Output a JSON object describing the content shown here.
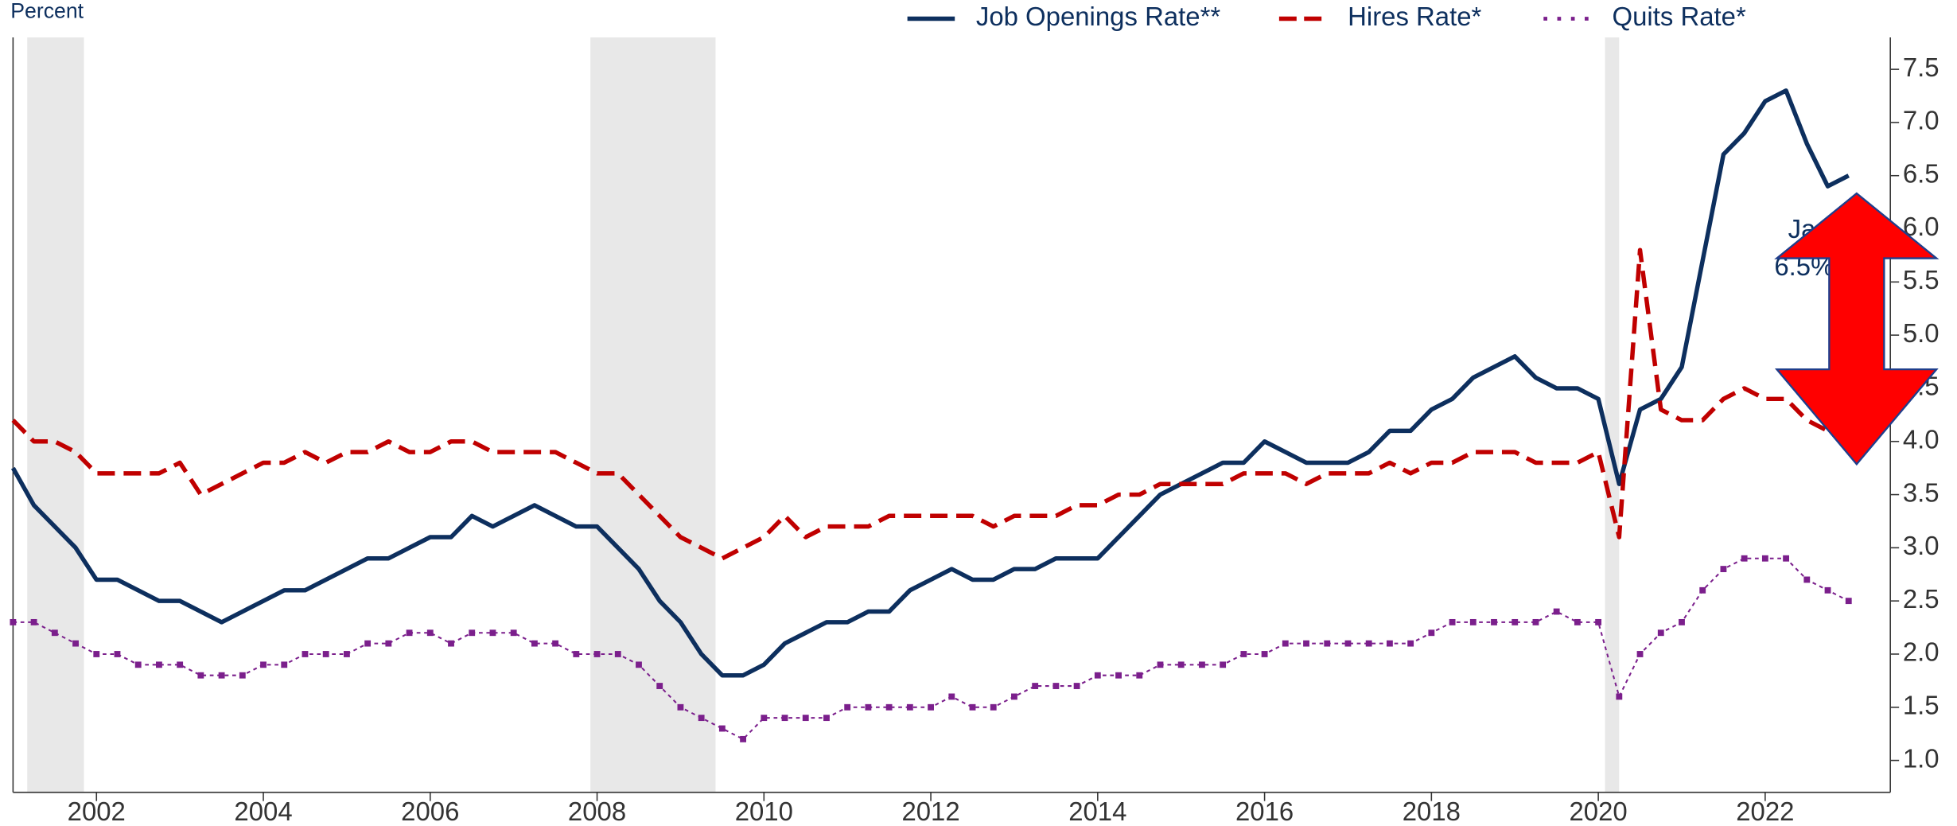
{
  "chart_data": {
    "type": "line",
    "y_axis_label": "Percent",
    "annotation": [
      "Jan",
      "6.5%"
    ],
    "xlim": [
      2001,
      2023.5
    ],
    "xticks": [
      2002,
      2004,
      2006,
      2008,
      2010,
      2012,
      2014,
      2016,
      2018,
      2020,
      2022
    ],
    "ylim": [
      0.7,
      7.8
    ],
    "yticks": [
      {
        "value": 1,
        "label": "1.0"
      },
      1.5,
      {
        "value": 2,
        "label": "2.0"
      },
      2.5,
      {
        "value": 3,
        "label": "3.0"
      },
      3.5,
      {
        "value": 4,
        "label": "4.0"
      },
      4.5,
      {
        "value": 5,
        "label": "5.0"
      },
      5.5,
      {
        "value": 6,
        "label": "6.0"
      },
      6.5,
      {
        "value": 7,
        "label": "7.0"
      },
      7.5
    ],
    "recessions": [
      [
        2001.17,
        2001.85
      ],
      [
        2007.92,
        2009.42
      ],
      [
        2020.08,
        2020.25
      ]
    ],
    "x": [
      2001,
      2001.25,
      2001.5,
      2001.75,
      2002,
      2002.25,
      2002.5,
      2002.75,
      2003,
      2003.25,
      2003.5,
      2003.75,
      2004,
      2004.25,
      2004.5,
      2004.75,
      2005,
      2005.25,
      2005.5,
      2005.75,
      2006,
      2006.25,
      2006.5,
      2006.75,
      2007,
      2007.25,
      2007.5,
      2007.75,
      2008,
      2008.25,
      2008.5,
      2008.75,
      2009,
      2009.25,
      2009.5,
      2009.75,
      2010,
      2010.25,
      2010.5,
      2010.75,
      2011,
      2011.25,
      2011.5,
      2011.75,
      2012,
      2012.25,
      2012.5,
      2012.75,
      2013,
      2013.25,
      2013.5,
      2013.75,
      2014,
      2014.25,
      2014.5,
      2014.75,
      2015,
      2015.25,
      2015.5,
      2015.75,
      2016,
      2016.25,
      2016.5,
      2016.75,
      2017,
      2017.25,
      2017.5,
      2017.75,
      2018,
      2018.25,
      2018.5,
      2018.75,
      2019,
      2019.25,
      2019.5,
      2019.75,
      2020,
      2020.25,
      2020.5,
      2020.75,
      2021,
      2021.25,
      2021.5,
      2021.75,
      2022,
      2022.25,
      2022.5,
      2022.75,
      2023
    ],
    "series": [
      {
        "name": "Job Openings Rate**",
        "color": "#0d2f5e",
        "style": "solid",
        "values": [
          3.75,
          3.4,
          3.2,
          3.0,
          2.7,
          2.7,
          2.6,
          2.5,
          2.5,
          2.4,
          2.3,
          2.4,
          2.5,
          2.6,
          2.6,
          2.7,
          2.8,
          2.9,
          2.9,
          3.0,
          3.1,
          3.1,
          3.3,
          3.2,
          3.3,
          3.4,
          3.3,
          3.2,
          3.2,
          3.0,
          2.8,
          2.5,
          2.3,
          2.0,
          1.8,
          1.8,
          1.9,
          2.1,
          2.2,
          2.3,
          2.3,
          2.4,
          2.4,
          2.6,
          2.7,
          2.8,
          2.7,
          2.7,
          2.8,
          2.8,
          2.9,
          2.9,
          2.9,
          3.1,
          3.3,
          3.5,
          3.6,
          3.7,
          3.8,
          3.8,
          4.0,
          3.9,
          3.8,
          3.8,
          3.8,
          3.9,
          4.1,
          4.1,
          4.3,
          4.4,
          4.6,
          4.7,
          4.8,
          4.6,
          4.5,
          4.5,
          4.4,
          3.6,
          4.3,
          4.4,
          4.7,
          5.7,
          6.7,
          6.9,
          7.2,
          7.3,
          6.8,
          6.4,
          6.5
        ]
      },
      {
        "name": "Hires Rate*",
        "color": "#c00000",
        "style": "dash",
        "values": [
          4.2,
          4.0,
          4.0,
          3.9,
          3.7,
          3.7,
          3.7,
          3.7,
          3.8,
          3.5,
          3.6,
          3.7,
          3.8,
          3.8,
          3.9,
          3.8,
          3.9,
          3.9,
          4.0,
          3.9,
          3.9,
          4.0,
          4.0,
          3.9,
          3.9,
          3.9,
          3.9,
          3.8,
          3.7,
          3.7,
          3.5,
          3.3,
          3.1,
          3.0,
          2.9,
          3.0,
          3.1,
          3.3,
          3.1,
          3.2,
          3.2,
          3.2,
          3.3,
          3.3,
          3.3,
          3.3,
          3.3,
          3.2,
          3.3,
          3.3,
          3.3,
          3.4,
          3.4,
          3.5,
          3.5,
          3.6,
          3.6,
          3.6,
          3.6,
          3.7,
          3.7,
          3.7,
          3.6,
          3.7,
          3.7,
          3.7,
          3.8,
          3.7,
          3.8,
          3.8,
          3.9,
          3.9,
          3.9,
          3.8,
          3.8,
          3.8,
          3.9,
          3.1,
          5.8,
          4.3,
          4.2,
          4.2,
          4.4,
          4.5,
          4.4,
          4.4,
          4.2,
          4.1,
          4.0
        ]
      },
      {
        "name": "Quits Rate*",
        "color": "#7b1f8c",
        "style": "dot",
        "values": [
          2.3,
          2.3,
          2.2,
          2.1,
          2.0,
          2.0,
          1.9,
          1.9,
          1.9,
          1.8,
          1.8,
          1.8,
          1.9,
          1.9,
          2.0,
          2.0,
          2.0,
          2.1,
          2.1,
          2.2,
          2.2,
          2.1,
          2.2,
          2.2,
          2.2,
          2.1,
          2.1,
          2.0,
          2.0,
          2.0,
          1.9,
          1.7,
          1.5,
          1.4,
          1.3,
          1.2,
          1.4,
          1.4,
          1.4,
          1.4,
          1.5,
          1.5,
          1.5,
          1.5,
          1.5,
          1.6,
          1.5,
          1.5,
          1.6,
          1.7,
          1.7,
          1.7,
          1.8,
          1.8,
          1.8,
          1.9,
          1.9,
          1.9,
          1.9,
          2.0,
          2.0,
          2.1,
          2.1,
          2.1,
          2.1,
          2.1,
          2.1,
          2.1,
          2.2,
          2.3,
          2.3,
          2.3,
          2.3,
          2.3,
          2.4,
          2.3,
          2.3,
          1.6,
          2.0,
          2.2,
          2.3,
          2.6,
          2.8,
          2.9,
          2.9,
          2.9,
          2.7,
          2.6,
          2.5
        ]
      }
    ]
  }
}
